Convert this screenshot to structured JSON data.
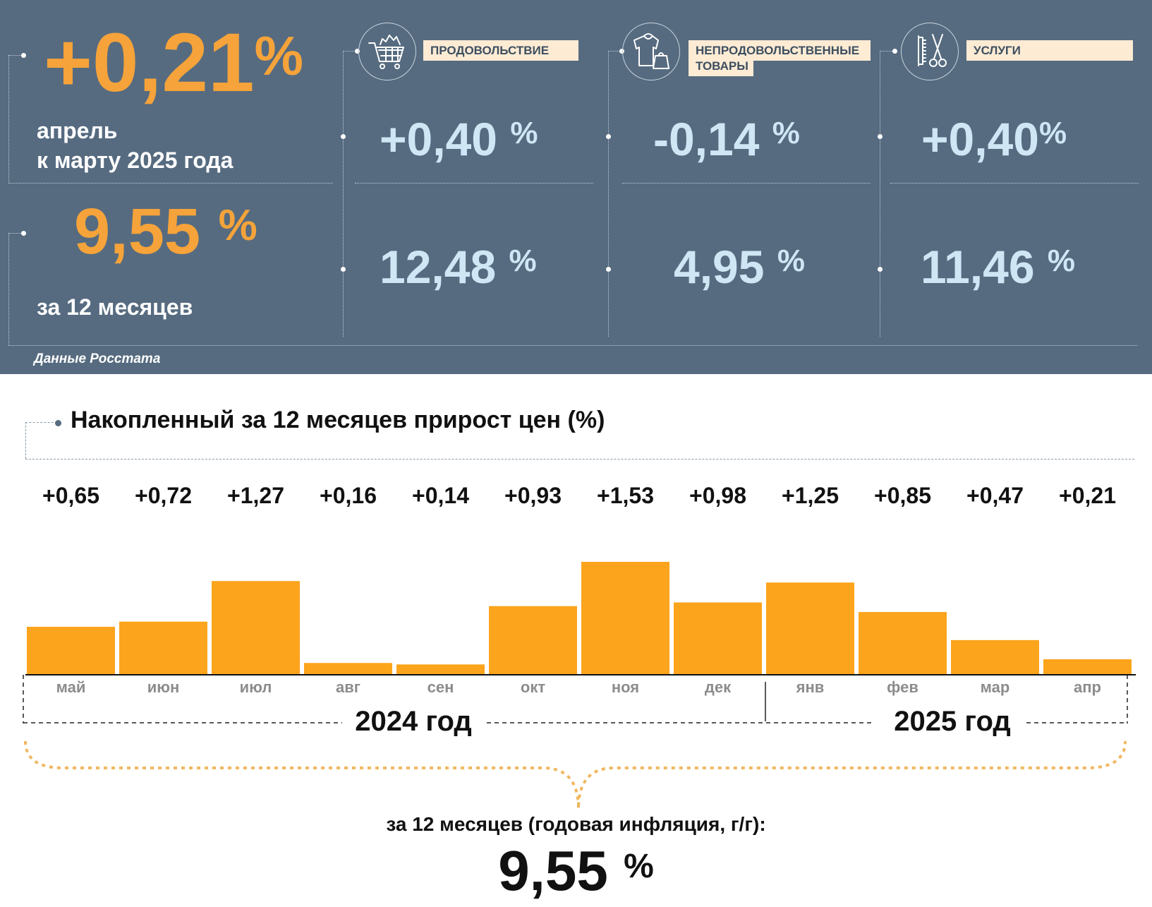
{
  "header": {
    "monthly_value": "+0,21",
    "monthly_caption_line1": "апрель",
    "monthly_caption_line2": "к марту 2025 года",
    "annual_value": "9,55",
    "annual_caption": "за 12 месяцев",
    "percent_sign": "%",
    "source": "Данные Росстата"
  },
  "categories": [
    {
      "name": "ПРОДОВОЛЬСТВИЕ",
      "icon": "shopping-cart-icon",
      "monthly": "+0,40",
      "annual": "12,48"
    },
    {
      "name_line1": "НЕПРОДОВОЛЬСТВЕННЫЕ",
      "name_line2": "ТОВАРЫ",
      "icon": "clothing-icon",
      "monthly": "-0,14",
      "annual": "4,95"
    },
    {
      "name": "УСЛУГИ",
      "icon": "comb-scissors-icon",
      "monthly": "+0,40",
      "annual": "11,46"
    }
  ],
  "chart_title": "Накопленный за 12 месяцев прирост цен (%)",
  "chart_data": {
    "type": "bar",
    "categories": [
      "май",
      "июн",
      "июл",
      "авг",
      "сен",
      "окт",
      "ноя",
      "дек",
      "янв",
      "фев",
      "мар",
      "апр"
    ],
    "values": [
      0.65,
      0.72,
      1.27,
      0.16,
      0.14,
      0.93,
      1.53,
      0.98,
      1.25,
      0.85,
      0.47,
      0.21
    ],
    "value_labels": [
      "+0,65",
      "+0,72",
      "+1,27",
      "+0,16",
      "+0,14",
      "+0,93",
      "+1,53",
      "+0,98",
      "+1,25",
      "+0,85",
      "+0,47",
      "+0,21"
    ],
    "year_groups": [
      "2024 год",
      "2025 год"
    ],
    "bar_color": "#fca41c"
  },
  "summary": {
    "caption": "за 12 месяцев (годовая инфляция, г/г):",
    "value": "9,55",
    "percent_sign": "%"
  },
  "colors": {
    "panel_bg": "#566b80",
    "orange": "#f5a33a",
    "light_blue": "#cfe6f5",
    "label_bg": "#fdebd4",
    "brace": "#f0b860"
  }
}
